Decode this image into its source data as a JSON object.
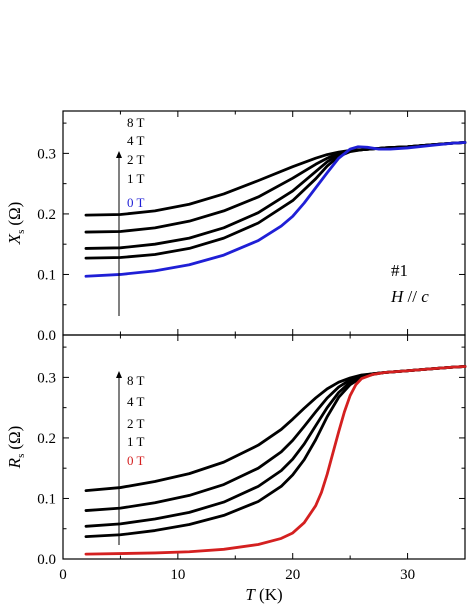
{
  "chart_data": [
    {
      "type": "line",
      "ylabel_var": "X",
      "ylabel_sub": "s",
      "ylabel_unit": "(Ω)",
      "xlim": [
        0,
        35
      ],
      "ylim": [
        0.0,
        0.37
      ],
      "xticks": [
        "0",
        "10",
        "20",
        "30"
      ],
      "yticks": [
        "0.0",
        "0.1",
        "0.2",
        "0.3"
      ],
      "annotation_line1": "#1",
      "annotation_line2_var": "H",
      "annotation_line2_op": " // ",
      "annotation_line2_axis": "c",
      "field_arrow": "increasing field",
      "legend": [
        {
          "label": "8 T",
          "color": "#000000"
        },
        {
          "label": "4 T",
          "color": "#000000"
        },
        {
          "label": "2 T",
          "color": "#000000"
        },
        {
          "label": "1 T",
          "color": "#000000"
        },
        {
          "label": "0 T",
          "color": "#1f1fd6"
        }
      ],
      "series": [
        {
          "name": "8 T",
          "color": "#000000",
          "x": [
            2,
            5,
            8,
            11,
            14,
            17,
            20,
            22,
            23,
            24,
            25,
            26,
            28,
            30,
            32,
            34,
            35
          ],
          "y": [
            0.198,
            0.199,
            0.205,
            0.216,
            0.233,
            0.255,
            0.278,
            0.292,
            0.298,
            0.302,
            0.305,
            0.306,
            0.309,
            0.311,
            0.314,
            0.317,
            0.318
          ]
        },
        {
          "name": "4 T",
          "color": "#000000",
          "x": [
            2,
            5,
            8,
            11,
            14,
            17,
            20,
            22,
            23,
            24,
            25,
            26,
            28,
            30,
            32,
            34,
            35
          ],
          "y": [
            0.17,
            0.171,
            0.177,
            0.188,
            0.205,
            0.228,
            0.259,
            0.282,
            0.292,
            0.3,
            0.305,
            0.306,
            0.309,
            0.311,
            0.314,
            0.317,
            0.318
          ]
        },
        {
          "name": "2 T",
          "color": "#000000",
          "x": [
            2,
            5,
            8,
            11,
            14,
            17,
            20,
            22,
            23,
            24,
            25,
            26,
            28,
            30,
            32,
            34,
            35
          ],
          "y": [
            0.143,
            0.144,
            0.15,
            0.16,
            0.177,
            0.202,
            0.238,
            0.27,
            0.286,
            0.298,
            0.304,
            0.306,
            0.309,
            0.311,
            0.314,
            0.317,
            0.318
          ]
        },
        {
          "name": "1 T",
          "color": "#000000",
          "x": [
            2,
            5,
            8,
            11,
            14,
            17,
            20,
            22,
            23,
            24,
            25,
            26,
            28,
            30,
            32,
            34,
            35
          ],
          "y": [
            0.127,
            0.128,
            0.133,
            0.143,
            0.16,
            0.185,
            0.222,
            0.258,
            0.279,
            0.295,
            0.303,
            0.306,
            0.309,
            0.311,
            0.314,
            0.317,
            0.318
          ]
        },
        {
          "name": "0 T",
          "color": "#1f1fd6",
          "x": [
            2,
            5,
            8,
            11,
            14,
            17,
            19,
            20,
            21,
            22,
            23,
            24,
            25,
            25.7,
            26.5,
            27.5,
            28.5,
            30,
            32,
            34,
            35
          ],
          "y": [
            0.097,
            0.1,
            0.106,
            0.116,
            0.132,
            0.156,
            0.18,
            0.196,
            0.218,
            0.243,
            0.268,
            0.292,
            0.307,
            0.311,
            0.31,
            0.307,
            0.307,
            0.309,
            0.313,
            0.317,
            0.318
          ]
        }
      ]
    },
    {
      "type": "line",
      "ylabel_var": "R",
      "ylabel_sub": "s",
      "ylabel_unit": "(Ω)",
      "xlabel_var": "T",
      "xlabel_unit": " (K)",
      "xlim": [
        0,
        35
      ],
      "ylim": [
        0.0,
        0.37
      ],
      "xticks": [
        "0",
        "10",
        "20",
        "30"
      ],
      "yticks": [
        "0.0",
        "0.1",
        "0.2",
        "0.3"
      ],
      "field_arrow": "increasing field",
      "legend": [
        {
          "label": "8 T",
          "color": "#000000"
        },
        {
          "label": "4 T",
          "color": "#000000"
        },
        {
          "label": "2 T",
          "color": "#000000"
        },
        {
          "label": "1 T",
          "color": "#000000"
        },
        {
          "label": "0 T",
          "color": "#d42020"
        }
      ],
      "series": [
        {
          "name": "8 T",
          "color": "#000000",
          "x": [
            2,
            5,
            8,
            11,
            14,
            17,
            19,
            20,
            21,
            22,
            23,
            24,
            25,
            26,
            27,
            28,
            30,
            32,
            34,
            35
          ],
          "y": [
            0.113,
            0.118,
            0.128,
            0.141,
            0.16,
            0.188,
            0.214,
            0.231,
            0.249,
            0.266,
            0.281,
            0.292,
            0.299,
            0.304,
            0.306,
            0.308,
            0.311,
            0.314,
            0.317,
            0.318
          ]
        },
        {
          "name": "4 T",
          "color": "#000000",
          "x": [
            2,
            5,
            8,
            11,
            14,
            17,
            19,
            20,
            21,
            22,
            23,
            24,
            25,
            26,
            27,
            28,
            30,
            32,
            34,
            35
          ],
          "y": [
            0.08,
            0.084,
            0.093,
            0.105,
            0.123,
            0.15,
            0.177,
            0.196,
            0.219,
            0.243,
            0.266,
            0.284,
            0.296,
            0.303,
            0.306,
            0.308,
            0.311,
            0.314,
            0.317,
            0.318
          ]
        },
        {
          "name": "2 T",
          "color": "#000000",
          "x": [
            2,
            5,
            8,
            11,
            14,
            17,
            19,
            20,
            21,
            22,
            23,
            24,
            25,
            26,
            27,
            28,
            30,
            32,
            34,
            35
          ],
          "y": [
            0.054,
            0.058,
            0.066,
            0.077,
            0.094,
            0.12,
            0.146,
            0.165,
            0.19,
            0.22,
            0.25,
            0.275,
            0.292,
            0.302,
            0.306,
            0.308,
            0.311,
            0.314,
            0.317,
            0.318
          ]
        },
        {
          "name": "1 T",
          "color": "#000000",
          "x": [
            2,
            5,
            8,
            11,
            14,
            17,
            19,
            20,
            21,
            22,
            23,
            24,
            25,
            26,
            27,
            28,
            30,
            32,
            34,
            35
          ],
          "y": [
            0.037,
            0.04,
            0.047,
            0.057,
            0.072,
            0.095,
            0.12,
            0.139,
            0.164,
            0.197,
            0.235,
            0.267,
            0.288,
            0.3,
            0.305,
            0.308,
            0.311,
            0.314,
            0.317,
            0.318
          ]
        },
        {
          "name": "0 T",
          "color": "#d42020",
          "x": [
            2,
            5,
            8,
            11,
            14,
            17,
            19,
            20,
            21,
            22,
            22.5,
            23,
            23.5,
            24,
            24.5,
            25,
            25.5,
            26,
            27,
            28,
            30,
            32,
            34,
            35
          ],
          "y": [
            0.008,
            0.009,
            0.01,
            0.012,
            0.016,
            0.024,
            0.034,
            0.043,
            0.06,
            0.088,
            0.11,
            0.14,
            0.175,
            0.21,
            0.243,
            0.27,
            0.288,
            0.298,
            0.305,
            0.308,
            0.311,
            0.314,
            0.317,
            0.318
          ]
        }
      ]
    }
  ]
}
